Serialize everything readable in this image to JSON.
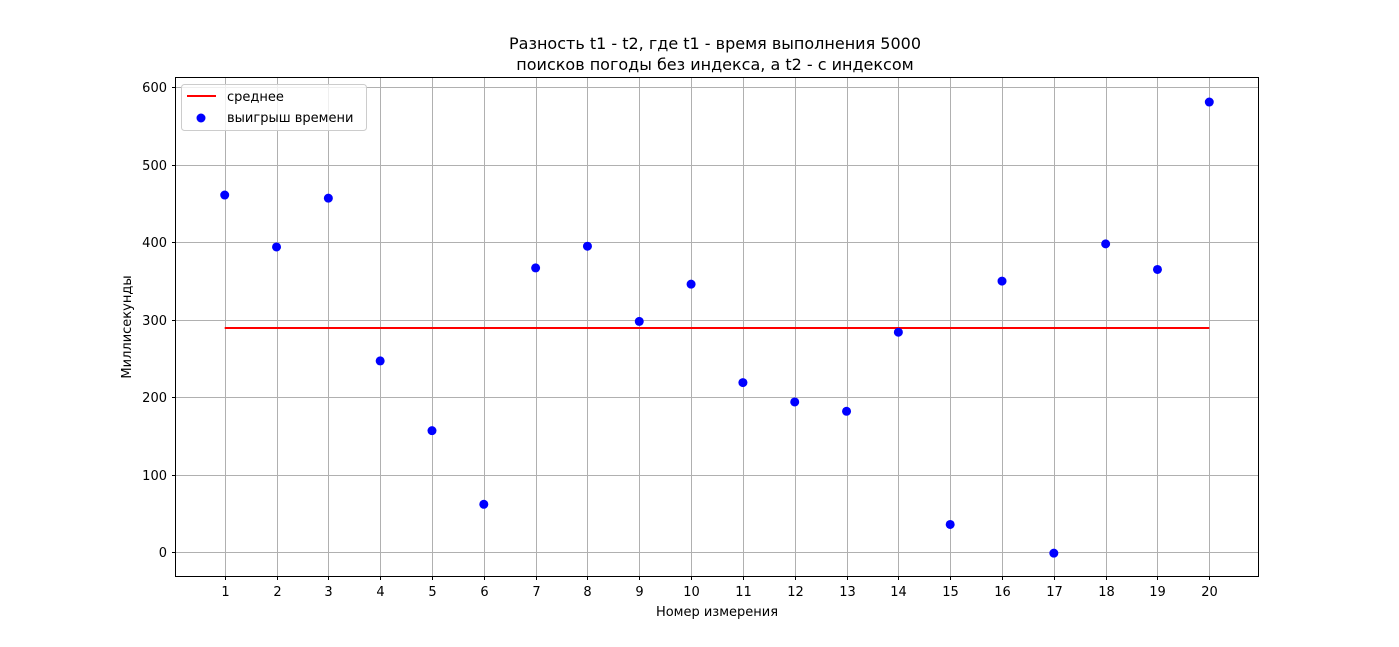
{
  "chart_data": {
    "type": "scatter",
    "title_lines": [
      "Разность t1 - t2, где t1 - время выполнения 5000",
      "поисков погоды без индекса, а t2 - с индексом"
    ],
    "xlabel": "Номер измерения",
    "ylabel": "Миллисекунды",
    "x": [
      1,
      2,
      3,
      4,
      5,
      6,
      7,
      8,
      9,
      10,
      11,
      12,
      13,
      14,
      15,
      16,
      17,
      18,
      19,
      20
    ],
    "xticks": [
      "1",
      "2",
      "3",
      "4",
      "5",
      "6",
      "7",
      "8",
      "9",
      "10",
      "11",
      "12",
      "13",
      "14",
      "15",
      "16",
      "17",
      "18",
      "19",
      "20"
    ],
    "yticks": [
      "0",
      "100",
      "200",
      "300",
      "400",
      "500",
      "600"
    ],
    "xlim": [
      0.06,
      20.94
    ],
    "ylim": [
      -30.5,
      612
    ],
    "grid": true,
    "legend_position": "top-left",
    "series": [
      {
        "name": "среднее",
        "kind": "line",
        "color": "#ff0000",
        "x": [
          1,
          20
        ],
        "y": [
          289.5,
          289.5
        ]
      },
      {
        "name": "выигрыш времени",
        "kind": "scatter",
        "color": "#0000ff",
        "x": [
          1,
          2,
          3,
          4,
          5,
          6,
          7,
          8,
          9,
          10,
          11,
          12,
          13,
          14,
          15,
          16,
          17,
          18,
          19,
          20
        ],
        "y": [
          461,
          394,
          457,
          247,
          157,
          62,
          367,
          395,
          298,
          346,
          219,
          194,
          182,
          284,
          36,
          350,
          -1,
          398,
          365,
          581
        ]
      }
    ]
  }
}
